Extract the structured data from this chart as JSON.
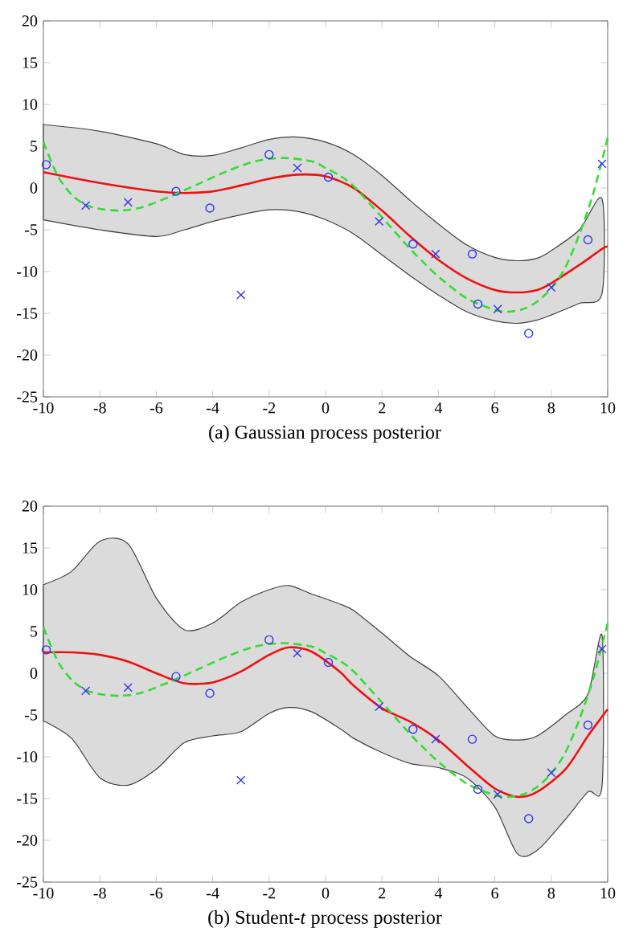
{
  "chart_data": [
    {
      "type": "line",
      "title": "(a) Gaussian process posterior",
      "xlim": [
        -10,
        10
      ],
      "ylim": [
        -25,
        20
      ],
      "xticks": [
        -10,
        -8,
        -6,
        -4,
        -2,
        0,
        2,
        4,
        6,
        8,
        10
      ],
      "yticks": [
        -25,
        -20,
        -15,
        -10,
        -5,
        0,
        5,
        10,
        15,
        20
      ],
      "series": [
        {
          "color": "#ee1111",
          "line_style": "solid",
          "x": [
            -10,
            -8,
            -6,
            -5,
            -4,
            -3,
            -2,
            -1,
            0,
            1,
            2,
            3,
            4,
            5,
            6,
            6.8,
            7.5,
            8,
            9,
            9.8,
            10
          ],
          "values": [
            1.9,
            0.6,
            -0.4,
            -0.6,
            -0.4,
            0.3,
            1.1,
            1.6,
            1.4,
            0,
            -2.7,
            -5.8,
            -8.6,
            -10.8,
            -12.2,
            -12.5,
            -12.2,
            -11.4,
            -9.2,
            -7.3,
            -7
          ],
          "upper": [
            7.6,
            6.8,
            5.3,
            4,
            3.9,
            4.8,
            5.8,
            6.1,
            5.5,
            4,
            1.5,
            -1.5,
            -4.3,
            -6.8,
            -8.3,
            -8.7,
            -8.4,
            -7.5,
            -5,
            -1.3,
            null
          ],
          "lower": [
            -3.8,
            -5,
            -5.8,
            -5,
            -4,
            -3.2,
            -2.6,
            -2.8,
            -3.8,
            -5.5,
            -8,
            -10.5,
            -12.8,
            -14.8,
            -15.9,
            -16.2,
            -15.8,
            -15.2,
            -13.8,
            -12.6,
            null
          ]
        },
        {
          "type": "line",
          "color": "#33dd33",
          "line_style": "dashed",
          "x": [
            -10,
            -9.5,
            -9,
            -8.5,
            -8,
            -7.3,
            -6.5,
            -5.5,
            -4.5,
            -3.5,
            -2.5,
            -1.5,
            -0.5,
            0,
            0.5,
            1,
            2,
            3,
            3.5,
            4,
            5,
            6,
            6.5,
            7,
            7.5,
            8,
            8.5,
            9,
            9.5,
            10
          ],
          "values": [
            5.5,
            1.5,
            -0.8,
            -2,
            -2.5,
            -2.7,
            -2.3,
            -1,
            0.5,
            2,
            3.2,
            3.6,
            3.2,
            2.4,
            1.5,
            0.2,
            -3.5,
            -7.3,
            -9,
            -10.6,
            -13.2,
            -14.6,
            -14.8,
            -14.5,
            -13.6,
            -12,
            -9.5,
            -5.5,
            -0.5,
            6
          ]
        },
        {
          "type": "scatter",
          "color": "#3333ee",
          "marker": "circle",
          "x": [
            -9.9,
            -5.3,
            -4.1,
            -2.0,
            0.1,
            3.1,
            5.2,
            5.4,
            7.2,
            9.3
          ],
          "values": [
            2.8,
            -0.4,
            -2.4,
            4.0,
            1.3,
            -6.7,
            -7.9,
            -13.9,
            -17.4,
            -6.2
          ]
        },
        {
          "type": "scatter",
          "color": "#3333ee",
          "marker": "cross",
          "x": [
            -8.5,
            -7.0,
            -3.0,
            -1.0,
            1.9,
            3.9,
            6.1,
            8.0,
            9.8
          ],
          "values": [
            -2.1,
            -1.7,
            -12.8,
            2.4,
            -4.0,
            -7.9,
            -14.5,
            -11.9,
            2.9
          ]
        }
      ]
    },
    {
      "type": "line",
      "title": "(b) Student-*t* process posterior",
      "xlim": [
        -10,
        10
      ],
      "ylim": [
        -25,
        20
      ],
      "xticks": [
        -10,
        -8,
        -6,
        -4,
        -2,
        0,
        2,
        4,
        6,
        8,
        10
      ],
      "yticks": [
        -25,
        -20,
        -15,
        -10,
        -5,
        0,
        5,
        10,
        15,
        20
      ],
      "series": [
        {
          "color": "#ee1111",
          "line_style": "solid",
          "x": [
            -10,
            -9,
            -8,
            -7,
            -6,
            -5,
            -4,
            -3,
            -2,
            -1.3,
            -0.5,
            0.5,
            1,
            2,
            3,
            4,
            5,
            6,
            6.8,
            7.5,
            8.5,
            9.3,
            9.8,
            10
          ],
          "values": [
            2.5,
            2.5,
            2.2,
            1.4,
            0,
            -1.2,
            -1.1,
            0.2,
            2.2,
            3.1,
            2.6,
            0.2,
            -1.5,
            -4.2,
            -5.8,
            -8,
            -11,
            -13.8,
            -14.8,
            -14.2,
            -11.5,
            -7.5,
            -5.2,
            -4.3
          ],
          "upper": [
            10.6,
            12.2,
            15.8,
            15.5,
            9,
            5.2,
            6,
            8.5,
            10,
            10.5,
            9.5,
            8.3,
            7.5,
            4.8,
            2,
            -0.3,
            -4,
            -7.5,
            -8,
            -7.5,
            -5,
            -2.5,
            4.5,
            null
          ],
          "lower": [
            -5.7,
            -7.8,
            -12.5,
            -13.4,
            -11.5,
            -8.3,
            -7.5,
            -7,
            -4.8,
            -4.1,
            -4.6,
            -6.6,
            -7.8,
            -9.5,
            -10.8,
            -11.3,
            -12.5,
            -16,
            -21.6,
            -21.2,
            -17.5,
            -14.2,
            -13.5,
            null
          ]
        },
        {
          "type": "line",
          "color": "#33dd33",
          "line_style": "dashed",
          "x": [
            -10,
            -9.5,
            -9,
            -8.5,
            -8,
            -7.3,
            -6.5,
            -5.5,
            -4.5,
            -3.5,
            -2.5,
            -1.5,
            -0.5,
            0,
            0.5,
            1,
            2,
            3,
            3.5,
            4,
            5,
            6,
            6.5,
            7,
            7.5,
            8,
            8.5,
            9,
            9.5,
            10
          ],
          "values": [
            5.5,
            1.5,
            -0.8,
            -2,
            -2.5,
            -2.7,
            -2.3,
            -1,
            0.5,
            2,
            3.2,
            3.6,
            3.2,
            2.4,
            1.5,
            0.2,
            -3.5,
            -7.3,
            -9,
            -10.6,
            -13.2,
            -14.6,
            -14.8,
            -14.5,
            -13.6,
            -12,
            -9.5,
            -5.5,
            -0.5,
            6
          ]
        },
        {
          "type": "scatter",
          "color": "#3333ee",
          "marker": "circle",
          "x": [
            -9.9,
            -5.3,
            -4.1,
            -2.0,
            0.1,
            3.1,
            5.2,
            5.4,
            7.2,
            9.3
          ],
          "values": [
            2.8,
            -0.4,
            -2.4,
            4.0,
            1.3,
            -6.7,
            -7.9,
            -13.9,
            -17.4,
            -6.2
          ]
        },
        {
          "type": "scatter",
          "color": "#3333ee",
          "marker": "cross",
          "x": [
            -8.5,
            -7.0,
            -3.0,
            -1.0,
            1.9,
            3.9,
            6.1,
            8.0,
            9.8
          ],
          "values": [
            -2.1,
            -1.7,
            -12.8,
            2.4,
            -4.0,
            -7.9,
            -14.5,
            -11.9,
            2.9
          ]
        }
      ]
    }
  ]
}
